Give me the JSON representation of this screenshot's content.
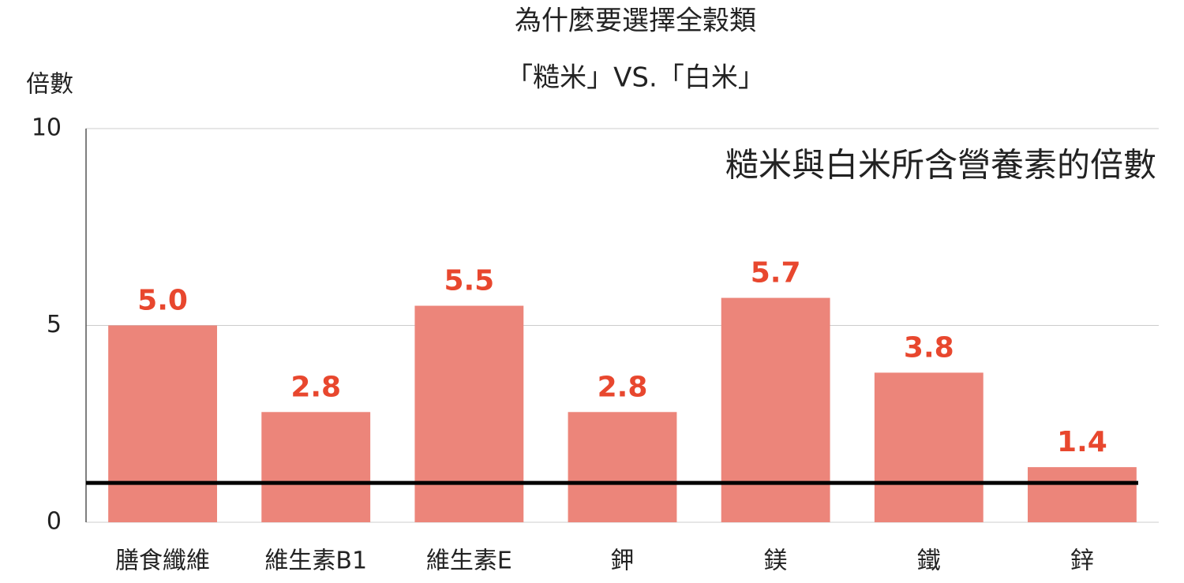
{
  "chart_data": {
    "type": "bar",
    "title": "為什麼要選擇全穀類",
    "subtitle": "「糙米」VS.「白米」",
    "y_label": "倍數",
    "annotation": "糙米與白米所含營養素的倍數",
    "categories": [
      "膳食纖維",
      "維生素B1",
      "維生素E",
      "鉀",
      "鎂",
      "鐵",
      "鋅"
    ],
    "values": [
      5.0,
      2.8,
      5.5,
      2.8,
      5.7,
      3.8,
      1.4
    ],
    "value_labels": [
      "5.0",
      "2.8",
      "5.5",
      "2.8",
      "5.7",
      "3.8",
      "1.4"
    ],
    "color": "#ec857a",
    "label_color": "#e8472e",
    "reference_line": 1,
    "ylim": [
      0,
      10
    ],
    "yticks": [
      0,
      5,
      10
    ],
    "grid": true
  }
}
